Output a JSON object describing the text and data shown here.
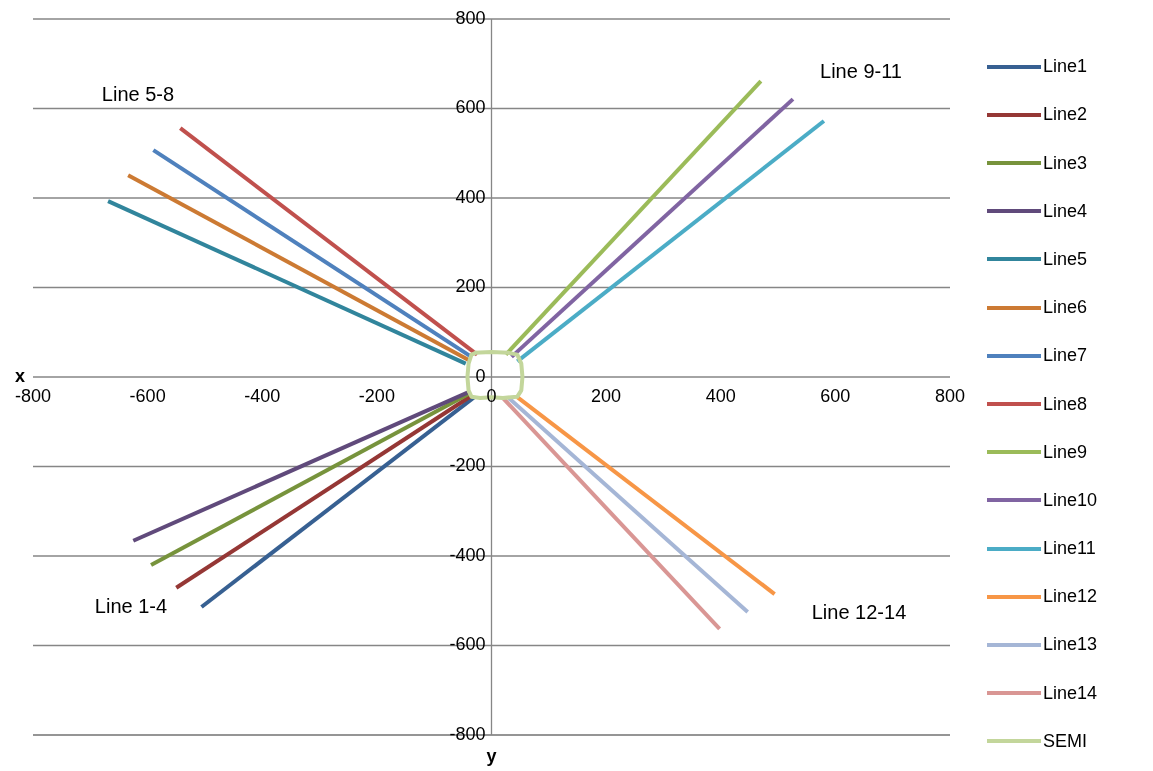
{
  "chart_data": {
    "type": "line",
    "xlabel": "y",
    "ylabel": "x",
    "xlim": [
      -800,
      800
    ],
    "xticks": [
      -800,
      -600,
      -400,
      -200,
      0,
      200,
      400,
      600,
      800
    ],
    "ylim": [
      -800,
      800
    ],
    "yticks": [
      -800,
      -600,
      -400,
      -200,
      0,
      200,
      400,
      600,
      800
    ],
    "grid": "y",
    "legend": "right",
    "marker": "none",
    "line_style": "solid",
    "annotations": [
      "Line 5-8",
      "Line 9-11",
      "Line 1-4",
      "Line 12-14"
    ],
    "series": [
      {
        "name": "Line1",
        "color": "#376092",
        "x": [
          -30,
          -506
        ],
        "values": [
          -45,
          -514
        ]
      },
      {
        "name": "Line2",
        "color": "#953735",
        "x": [
          -35,
          -550
        ],
        "values": [
          -42,
          -471
        ]
      },
      {
        "name": "Line3",
        "color": "#77933c",
        "x": [
          -40,
          -594
        ],
        "values": [
          -38,
          -420
        ]
      },
      {
        "name": "Line4",
        "color": "#604a7b",
        "x": [
          -42,
          -625
        ],
        "values": [
          -35,
          -366
        ]
      },
      {
        "name": "Line5",
        "color": "#31859c",
        "x": [
          -45,
          -669
        ],
        "values": [
          30,
          393
        ]
      },
      {
        "name": "Line6",
        "color": "#cc7a33",
        "x": [
          -40,
          -634
        ],
        "values": [
          38,
          451
        ]
      },
      {
        "name": "Line7",
        "color": "#4f81bd",
        "x": [
          -35,
          -590
        ],
        "values": [
          45,
          507
        ]
      },
      {
        "name": "Line8",
        "color": "#c0504d",
        "x": [
          -25,
          -543
        ],
        "values": [
          50,
          556
        ]
      },
      {
        "name": "Line9",
        "color": "#9bbb59",
        "x": [
          25,
          470
        ],
        "values": [
          50,
          661
        ]
      },
      {
        "name": "Line10",
        "color": "#8064a2",
        "x": [
          35,
          526
        ],
        "values": [
          45,
          621
        ]
      },
      {
        "name": "Line11",
        "color": "#4bacc6",
        "x": [
          45,
          580
        ],
        "values": [
          35,
          572
        ]
      },
      {
        "name": "Line12",
        "color": "#f79646",
        "x": [
          45,
          494
        ],
        "values": [
          -45,
          -485
        ]
      },
      {
        "name": "Line13",
        "color": "#a5b6d6",
        "x": [
          30,
          447
        ],
        "values": [
          -47,
          -525
        ]
      },
      {
        "name": "Line14",
        "color": "#d99694",
        "x": [
          20,
          398
        ],
        "values": [
          -47,
          -563
        ]
      },
      {
        "name": "SEMI",
        "color": "#c3d69b",
        "x": [
          -30,
          0,
          30,
          45,
          52,
          54,
          52,
          45,
          20,
          0,
          -20,
          -35,
          -40,
          -42,
          -40,
          -35,
          -25
        ],
        "values": [
          54,
          56,
          54,
          50,
          30,
          0,
          -30,
          -44,
          -47,
          -45,
          -47,
          -44,
          -30,
          0,
          30,
          50,
          55
        ]
      }
    ]
  }
}
